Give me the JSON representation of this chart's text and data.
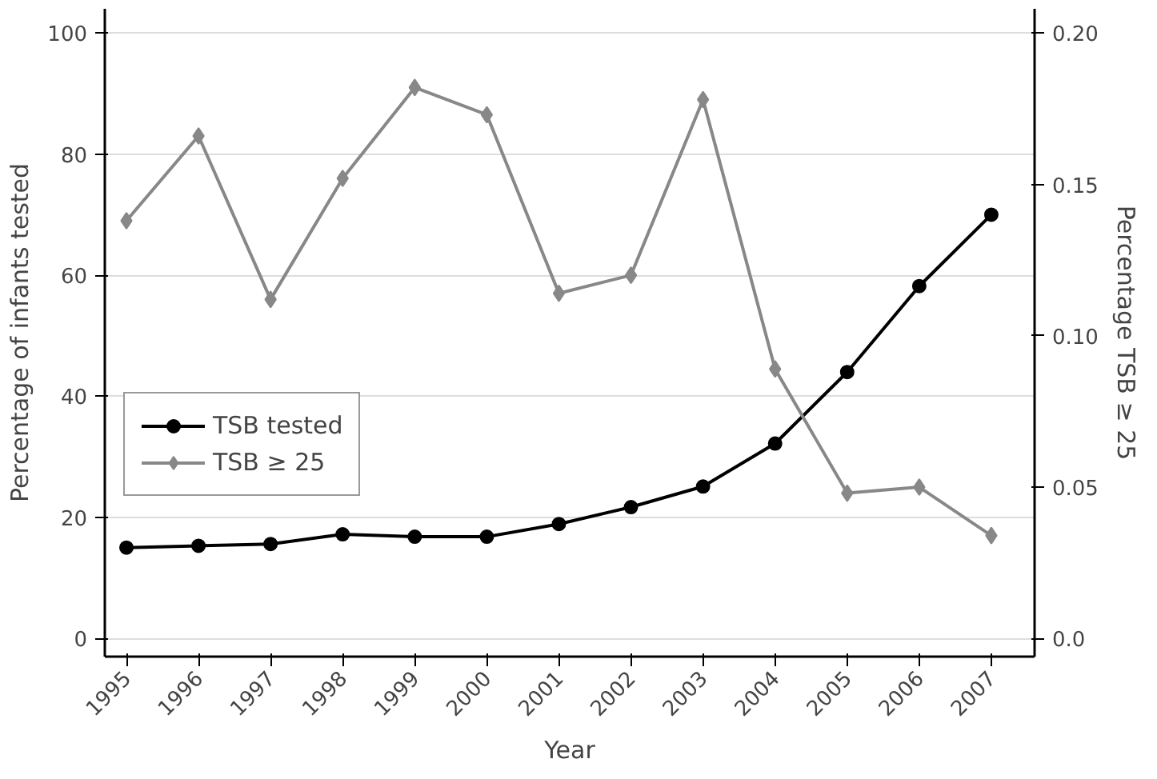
{
  "chart_data": {
    "type": "line",
    "xlabel": "Year",
    "ylabel": "Percentage of infants tested",
    "y2label": "Percentage TSB ≥ 25",
    "x": [
      1995,
      1996,
      1997,
      1998,
      1999,
      2000,
      2001,
      2002,
      2003,
      2004,
      2005,
      2006,
      2007
    ],
    "xlim": [
      1994.7,
      2007.6
    ],
    "xticks": [
      1995,
      1996,
      1997,
      1998,
      1999,
      2000,
      2001,
      2002,
      2003,
      2004,
      2005,
      2006,
      2007
    ],
    "ylim": [
      -3,
      104
    ],
    "yticks": [
      0,
      20,
      40,
      60,
      80,
      100
    ],
    "y2lim": [
      -0.006,
      0.208
    ],
    "y2ticks": [
      {
        "value": 0,
        "label": "0.0"
      },
      {
        "value": 0.05,
        "label": "0.05"
      },
      {
        "value": 0.1,
        "label": "0.10"
      },
      {
        "value": 0.15,
        "label": "0.15"
      },
      {
        "value": 0.2,
        "label": "0.20"
      }
    ],
    "series": [
      {
        "name": "TSB tested",
        "color": "#000000",
        "marker": "circle",
        "values": [
          15.0,
          15.3,
          15.6,
          17.2,
          16.8,
          16.8,
          18.9,
          21.7,
          25.1,
          32.2,
          44.0,
          58.2,
          70.0
        ]
      },
      {
        "name": "TSB ≥ 25",
        "color": "#888888",
        "marker": "diamond",
        "axis": "y2",
        "values": [
          0.138,
          0.166,
          0.112,
          0.152,
          0.182,
          0.173,
          0.114,
          0.12,
          0.178,
          0.089,
          0.048,
          0.05,
          0.034
        ]
      }
    ],
    "grid": "y",
    "legend": "left",
    "line_style": "solid"
  }
}
